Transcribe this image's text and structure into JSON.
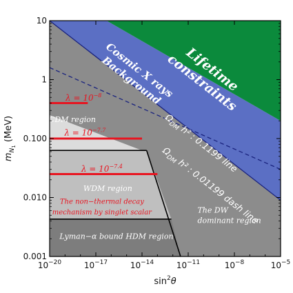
{
  "chart_data": {
    "type": "area",
    "title": "",
    "xlabel": "sin²θ",
    "ylabel": "m_N1 (MeV)",
    "xscale": "log",
    "yscale": "log",
    "xlim": [
      1e-20,
      1e-05
    ],
    "ylim": [
      0.001,
      10
    ],
    "x_ticks": [
      1e-20,
      1e-17,
      1e-14,
      1e-11,
      1e-08,
      1e-05
    ],
    "x_tick_labels": [
      {
        "base": "10",
        "exp": "−20"
      },
      {
        "base": "10",
        "exp": "−17"
      },
      {
        "base": "10",
        "exp": "−14"
      },
      {
        "base": "10",
        "exp": "−11"
      },
      {
        "base": "10",
        "exp": "−8"
      },
      {
        "base": "10",
        "exp": "−5"
      }
    ],
    "y_ticks": [
      0.001,
      0.01,
      0.1,
      1,
      10
    ],
    "y_tick_labels": [
      "0.001",
      "0.010",
      "0.100",
      "1",
      "10"
    ],
    "colors": {
      "lifetime": "#0b8a3c",
      "xray": "#5b6fc4",
      "dw": "#8c8c8c",
      "hdm": "#7d7d7d",
      "wdm": "#bfbfbf",
      "cdm": "#dcdcdc",
      "lambda": "#e8131f",
      "line": "#1a237e"
    },
    "regions": [
      {
        "name": "Lifetime constraints",
        "lines": [
          "Lifetime",
          "constraints"
        ],
        "label_at": [
          2.5e-10,
          1.3
        ],
        "polygon": [
          [
            5e-17,
            10
          ],
          [
            1e-05,
            10
          ],
          [
            1e-05,
            0.2
          ]
        ]
      },
      {
        "name": "Cosmic X rays Background",
        "lines": [
          "Cosmic X rays",
          "Background"
        ],
        "label_at": [
          5e-15,
          1.3
        ],
        "polygon": [
          [
            1e-20,
            10
          ],
          [
            5e-17,
            10
          ],
          [
            1e-05,
            0.2
          ],
          [
            1e-05,
            0.009
          ]
        ]
      },
      {
        "name": "CDM region",
        "lines": [
          "CDM region"
        ],
        "label_at": [
          3e-19,
          0.19
        ],
        "polygon": [
          [
            1e-20,
            0.25
          ],
          [
            1e-14,
            0.063
          ],
          [
            1e-20,
            0.063
          ]
        ]
      },
      {
        "name": "WDM region",
        "lines": [
          "WDM region"
        ],
        "label_at": [
          6e-17,
          0.013
        ],
        "polygon": [
          [
            1e-20,
            0.063
          ],
          [
            2e-14,
            0.063
          ],
          [
            8e-13,
            0.0043
          ],
          [
            1e-20,
            0.0043
          ]
        ]
      },
      {
        "name": "The DW dominant region",
        "lines": [
          "The DW",
          "dominant region"
        ],
        "label_at": [
          4e-11,
          0.0055
        ],
        "polygon": [
          [
            1e-20,
            10
          ],
          [
            1e-05,
            0.009
          ],
          [
            1e-05,
            0.001
          ],
          [
            1e-20,
            0.001
          ]
        ]
      },
      {
        "name": "Lyman-α bound HDM region",
        "lines": [
          "Lyman−α bound HDM region"
        ],
        "label_at": [
          2.2e-16,
          0.002
        ],
        "polygon": [
          [
            1e-20,
            0.0043
          ],
          [
            8e-13,
            0.0043
          ],
          [
            3.2e-12,
            0.001
          ],
          [
            1e-20,
            0.001
          ]
        ]
      }
    ],
    "annotations": [
      {
        "text": "The non−thermal decay",
        "at": [
          2.5e-17,
          0.0078
        ]
      },
      {
        "text": "mechanism by singlet scalar",
        "at": [
          2.5e-17,
          0.0052
        ]
      }
    ],
    "boundaries": [
      {
        "name": "WDM upper boundary",
        "points": [
          [
            1e-20,
            0.063
          ],
          [
            2e-14,
            0.063
          ]
        ]
      },
      {
        "name": "WDM/DW boundary",
        "points": [
          [
            2e-14,
            0.063
          ],
          [
            3.2e-12,
            0.001
          ]
        ]
      },
      {
        "name": "HDM upper boundary",
        "points": [
          [
            1e-20,
            0.0043
          ],
          [
            8e-13,
            0.0043
          ]
        ]
      }
    ],
    "lambda_lines": [
      {
        "label": "λ = 10",
        "exp": "−8",
        "y": 0.4,
        "x": [
          1e-20,
          3e-18
        ],
        "label_at": [
          1.6e-18,
          0.44
        ]
      },
      {
        "label": "λ = 10",
        "exp": "−7.7",
        "y": 0.1,
        "x": [
          1e-20,
          1e-14
        ],
        "label_at": [
          2e-18,
          0.113
        ]
      },
      {
        "label": "λ = 10",
        "exp": "−7.4",
        "y": 0.025,
        "x": [
          1e-20,
          1e-13
        ],
        "label_at": [
          2.5e-17,
          0.0275
        ]
      }
    ],
    "relic_lines": [
      {
        "label": "Ω",
        "sub": "DM",
        "rest": " h² : 0.1199 line",
        "style": "solid",
        "points": [
          [
            1e-20,
            10
          ],
          [
            1e-05,
            0.009
          ]
        ],
        "label_at": [
          3e-13,
          0.22
        ]
      },
      {
        "label": "Ω",
        "sub": "DM",
        "rest": " h² : 0.01199 dash line",
        "style": "dashed",
        "points": [
          [
            1e-20,
            1.6
          ],
          [
            1e-05,
            0.03
          ]
        ],
        "label_at": [
          2e-13,
          0.06
        ]
      }
    ]
  }
}
